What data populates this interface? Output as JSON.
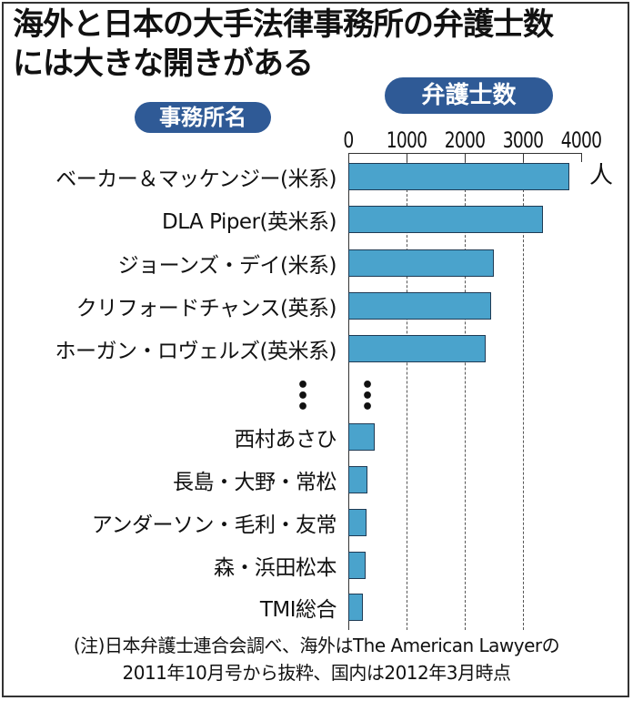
{
  "header": {
    "title_line1": "海外と日本の大手法律事務所の弁護士数",
    "title_line2": "には大きな開きがある"
  },
  "legend": {
    "names_pill": "事務所名",
    "lawyers_pill": "弁護士数",
    "unit": "人",
    "ellipsis": "⋮"
  },
  "footer": {
    "note_line1": "(注)日本弁護士連合会調べ、海外はThe American Lawyerの",
    "note_line2": "2011年10月号から抜粋、国内は2012年3月時点"
  },
  "colors": {
    "bar": "#4aa3cc",
    "pill": "#2f5a96"
  },
  "chart_data": {
    "type": "bar",
    "orientation": "horizontal",
    "title": "海外と日本の大手法律事務所の弁護士数には大きな開きがある",
    "xlabel": "弁護士数 (人)",
    "ylabel": "事務所名",
    "xlim": [
      0,
      4000
    ],
    "x_ticks": [
      "0",
      "1000",
      "2000",
      "3000",
      "4000"
    ],
    "grid": "vertical dashed",
    "categories": [
      "ベーカー＆マッケンジー(米系)",
      "DLA Piper(英米系)",
      "ジョーンズ・デイ(米系)",
      "クリフォードチャンス(英系)",
      "ホーガン・ロヴェルズ(英米系)",
      "西村あさひ",
      "長島・大野・常松",
      "アンダーソン・毛利・友常",
      "森・浜田松本",
      "TMI総合"
    ],
    "values": [
      3800,
      3350,
      2500,
      2450,
      2360,
      450,
      330,
      310,
      300,
      250
    ],
    "annotations": [
      "ellipsis between overseas and domestic firms"
    ]
  }
}
